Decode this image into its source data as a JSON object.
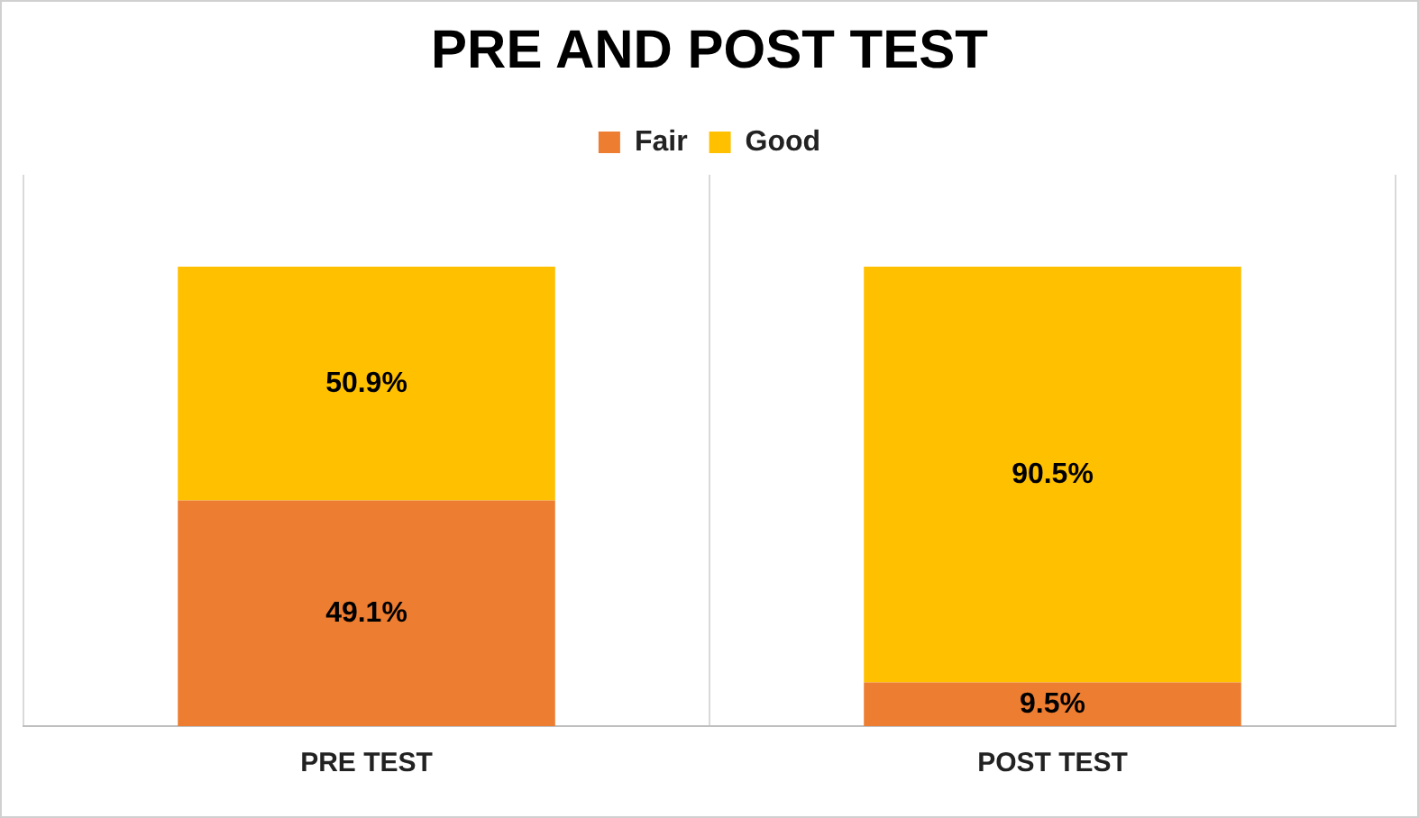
{
  "chart_data": {
    "type": "bar",
    "title": "PRE AND POST TEST",
    "categories": [
      "PRE TEST",
      "POST TEST"
    ],
    "stacked": true,
    "series": [
      {
        "name": "Fair",
        "color": "#ed7d31",
        "values": [
          49.1,
          9.5
        ],
        "value_labels": [
          "49.1%",
          "9.5%"
        ]
      },
      {
        "name": "Good",
        "color": "#ffc000",
        "values": [
          50.9,
          90.5
        ],
        "value_labels": [
          "50.9%",
          "90.5%"
        ]
      }
    ],
    "legend": "top",
    "grid": "x",
    "tick_labels": "x"
  }
}
